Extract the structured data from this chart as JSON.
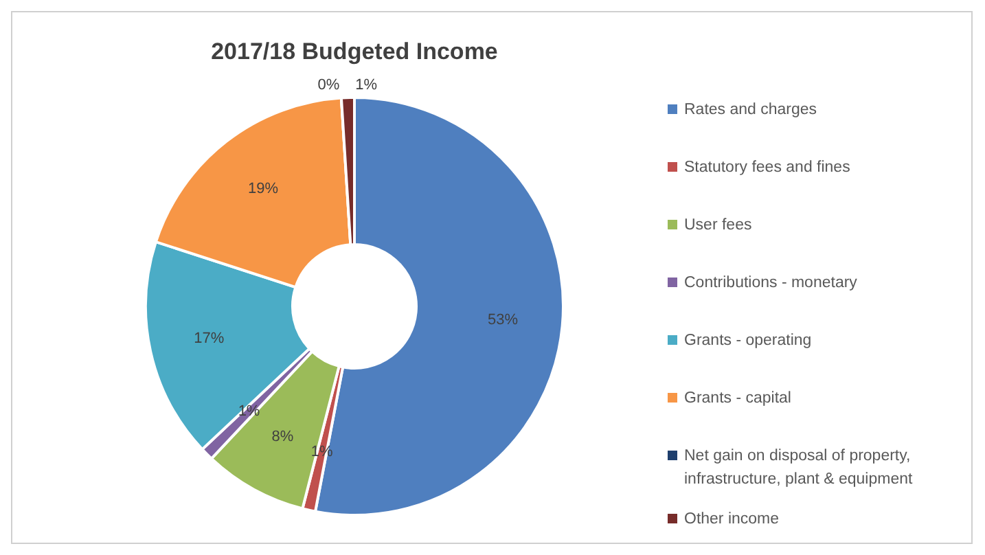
{
  "chart_data": {
    "type": "donut",
    "title": "2017/18 Budgeted Income",
    "categories": [
      "Rates and charges",
      "Statutory fees and fines",
      "User fees",
      "Contributions - monetary",
      "Grants - operating",
      "Grants - capital",
      "Net gain on disposal of property, infrastructure, plant & equipment",
      "Other income"
    ],
    "values": [
      53,
      1,
      8,
      1,
      17,
      19,
      0,
      1
    ],
    "colors": [
      "#4f7fbf",
      "#c0504d",
      "#9bbb59",
      "#8064a2",
      "#4bacc6",
      "#f79646",
      "#1f3f6d",
      "#772c2a"
    ],
    "value_labels": [
      "53%",
      "1%",
      "8%",
      "1%",
      "17%",
      "19%",
      "0%",
      "1%"
    ],
    "legend": "right"
  }
}
